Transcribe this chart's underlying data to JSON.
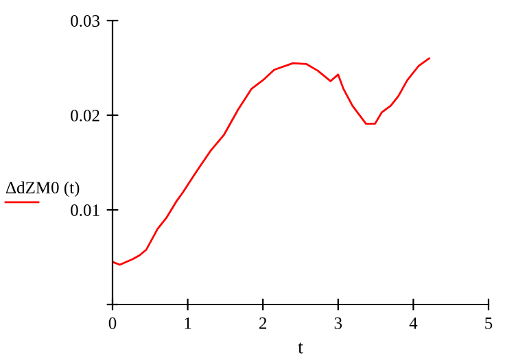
{
  "chart_data": {
    "type": "line",
    "xlabel": "t",
    "legend": "left",
    "series": [
      {
        "name": "ΔdZM0 (t)",
        "color": "#ff0000",
        "x": [
          0,
          0.097,
          0.27,
          0.36,
          0.45,
          0.6,
          0.72,
          0.85,
          0.94,
          1.12,
          1.3,
          1.48,
          1.67,
          1.85,
          2.0,
          2.15,
          2.4,
          2.58,
          2.73,
          2.9,
          3.0,
          3.07,
          3.19,
          3.37,
          3.49,
          3.58,
          3.7,
          3.8,
          3.92,
          4.07,
          4.21
        ],
        "values": [
          0.0045,
          0.0042,
          0.0048,
          0.0052,
          0.0058,
          0.008,
          0.0092,
          0.0109,
          0.0119,
          0.0141,
          0.0162,
          0.0179,
          0.0206,
          0.0228,
          0.0237,
          0.0248,
          0.0255,
          0.0254,
          0.0247,
          0.0236,
          0.0243,
          0.0228,
          0.021,
          0.0191,
          0.0191,
          0.0203,
          0.021,
          0.022,
          0.0237,
          0.0252,
          0.026
        ]
      }
    ],
    "xlim": [
      0,
      5
    ],
    "xticks": [
      0,
      1,
      2,
      3,
      4,
      5
    ],
    "ylim": [
      0,
      0.03
    ],
    "yticks": [
      {
        "value": 0,
        "label": null
      },
      0.01,
      0.02,
      0.03
    ],
    "grid": false
  }
}
